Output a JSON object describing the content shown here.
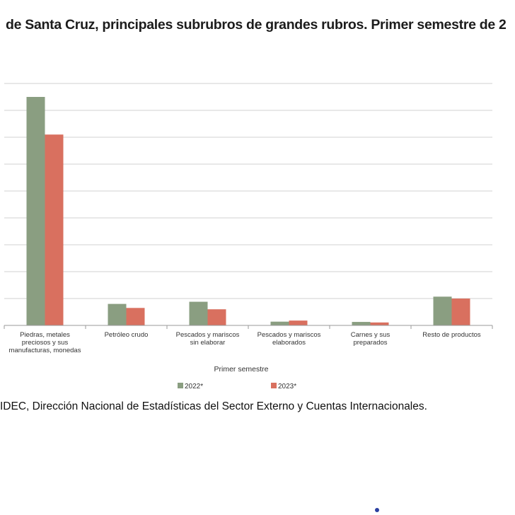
{
  "title": "de Santa Cruz, principales subrubros de grandes rubros. Primer semestre de 2",
  "source": "IDEC, Dirección Nacional de Estadísticas del Sector Externo y Cuentas Internacionales.",
  "colors": {
    "series_2022": "#8a9e81",
    "series_2023": "#d9705f",
    "grid": "#d0d0d0",
    "axis": "#9a9a9a"
  },
  "chart_data": {
    "type": "bar",
    "xlabel": "Primer semestre",
    "ylabel": "",
    "ylim": [
      0,
      9
    ],
    "grid": true,
    "legend": "bottom",
    "categories": [
      [
        "Piedras, metales",
        "preciosos y sus",
        "manufacturas, monedas"
      ],
      [
        "Petróleo crudo"
      ],
      [
        "Pescados y mariscos",
        "sin elaborar"
      ],
      [
        "Pescados y mariscos",
        "elaborados"
      ],
      [
        "Carnes y sus",
        "preparados"
      ],
      [
        "Resto de productos"
      ]
    ],
    "series": [
      {
        "name": "2022*",
        "values": [
          8.5,
          0.8,
          0.88,
          0.14,
          0.13,
          1.07
        ]
      },
      {
        "name": "2023*",
        "values": [
          7.1,
          0.65,
          0.6,
          0.18,
          0.11,
          1.0
        ]
      }
    ]
  }
}
